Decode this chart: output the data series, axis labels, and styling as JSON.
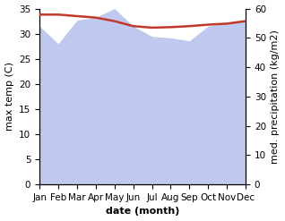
{
  "months": [
    "Jan",
    "Feb",
    "Mar",
    "Apr",
    "May",
    "Jun",
    "Jul",
    "Aug",
    "Sep",
    "Oct",
    "Nov",
    "Dec"
  ],
  "x": [
    0,
    1,
    2,
    3,
    4,
    5,
    6,
    7,
    8,
    9,
    10,
    11
  ],
  "temp": [
    33.8,
    33.8,
    33.5,
    33.2,
    32.5,
    31.5,
    31.2,
    31.3,
    31.5,
    31.8,
    32.0,
    32.5
  ],
  "precip": [
    54.0,
    48.0,
    56.0,
    57.0,
    60.0,
    54.0,
    50.5,
    50.0,
    49.0,
    54.0,
    55.0,
    56.0
  ],
  "temp_color": "#c0392b",
  "precip_fill_color": "#bfc8ee",
  "ylim_left": [
    0,
    35
  ],
  "ylim_right": [
    0,
    60
  ],
  "ylabel_left": "max temp (C)",
  "ylabel_right": "med. precipitation (kg/m2)",
  "xlabel": "date (month)",
  "label_fontsize": 8,
  "tick_fontsize": 7.5
}
